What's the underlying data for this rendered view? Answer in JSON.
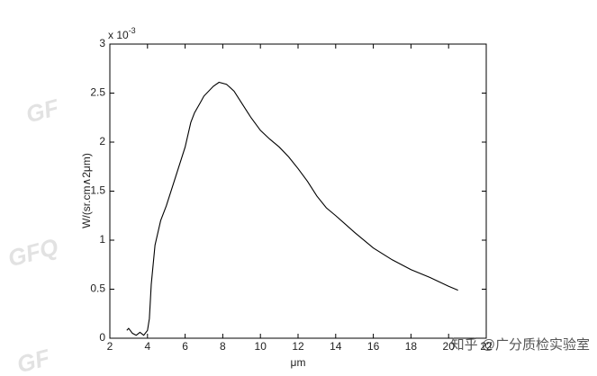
{
  "chart_data": {
    "type": "line",
    "y_label": "W/(sr.cm∧2μm)",
    "x_label": "μm",
    "y_multiplier": {
      "base": "x 10",
      "exponent": "-3"
    },
    "x": [
      2.9,
      3.0,
      3.2,
      3.4,
      3.6,
      3.8,
      4.0,
      4.1,
      4.2,
      4.4,
      4.7,
      5.0,
      5.5,
      6.0,
      6.3,
      6.5,
      6.8,
      7.0,
      7.5,
      7.8,
      8.2,
      8.6,
      9.0,
      9.5,
      10.0,
      10.5,
      11.0,
      11.5,
      12.0,
      12.5,
      13.0,
      13.5,
      14.0,
      15.0,
      16.0,
      17.0,
      18.0,
      19.0,
      20.0,
      20.5
    ],
    "series": [
      {
        "color": "#000000",
        "values": [
          0.08,
          0.1,
          0.05,
          0.03,
          0.06,
          0.03,
          0.08,
          0.2,
          0.55,
          0.95,
          1.2,
          1.35,
          1.65,
          1.95,
          2.2,
          2.3,
          2.4,
          2.47,
          2.57,
          2.61,
          2.59,
          2.52,
          2.4,
          2.25,
          2.12,
          2.03,
          1.95,
          1.85,
          1.73,
          1.6,
          1.45,
          1.33,
          1.25,
          1.08,
          0.92,
          0.8,
          0.7,
          0.62,
          0.53,
          0.49
        ]
      }
    ],
    "xlim": [
      2,
      22
    ],
    "xticks": [
      2,
      4,
      6,
      8,
      10,
      12,
      14,
      16,
      18,
      20,
      22
    ],
    "ylim": [
      0,
      3
    ],
    "yticks": [
      0,
      0.5,
      1,
      1.5,
      2,
      2.5,
      3
    ],
    "grid": false
  },
  "watermarks": [
    "GF",
    "GFQ",
    "GF",
    "知乎 @广分质检实验室"
  ]
}
